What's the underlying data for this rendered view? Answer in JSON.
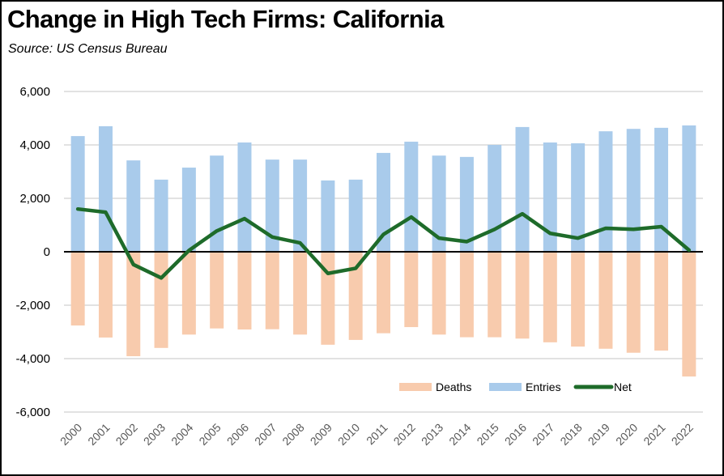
{
  "chart_data": {
    "type": "bar",
    "title": "Change in High Tech Firms:  California",
    "subtitle": "Source:  US Census Bureau",
    "xlabel": "",
    "ylabel": "",
    "ylim": [
      -6000,
      6000
    ],
    "yticks": [
      6000,
      4000,
      2000,
      0,
      -2000,
      -4000,
      -6000
    ],
    "ytick_labels": [
      "6,000",
      "4,000",
      "2,000",
      "0",
      "-2,000",
      "-4,000",
      "-6,000"
    ],
    "grid": true,
    "legend_position": "bottom-right",
    "categories": [
      "2000",
      "2001",
      "2002",
      "2003",
      "2004",
      "2005",
      "2006",
      "2007",
      "2008",
      "2009",
      "2010",
      "2011",
      "2012",
      "2013",
      "2014",
      "2015",
      "2016",
      "2017",
      "2018",
      "2019",
      "2020",
      "2021",
      "2022"
    ],
    "series": [
      {
        "name": "Deaths",
        "type": "bar",
        "color": "#F8CBAD",
        "values": [
          -2760,
          -3210,
          -3910,
          -3600,
          -3100,
          -2870,
          -2910,
          -2900,
          -3100,
          -3480,
          -3300,
          -3050,
          -2820,
          -3100,
          -3200,
          -3200,
          -3250,
          -3390,
          -3550,
          -3630,
          -3780,
          -3700,
          -4670
        ]
      },
      {
        "name": "Entries",
        "type": "bar",
        "color": "#A9CBEB",
        "values": [
          4330,
          4700,
          3420,
          2700,
          3150,
          3600,
          4090,
          3450,
          3450,
          2670,
          2700,
          3700,
          4120,
          3600,
          3550,
          4000,
          4670,
          4090,
          4060,
          4510,
          4600,
          4640,
          4730
        ]
      },
      {
        "name": "Net",
        "type": "line",
        "color": "#1E6B2A",
        "values": [
          1600,
          1480,
          -480,
          -980,
          50,
          780,
          1240,
          550,
          330,
          -810,
          -620,
          650,
          1300,
          510,
          380,
          840,
          1420,
          690,
          510,
          880,
          840,
          940,
          60
        ]
      }
    ]
  }
}
